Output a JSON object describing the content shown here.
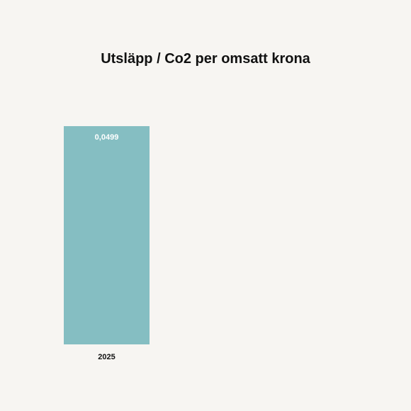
{
  "chart_data": {
    "type": "bar",
    "title": "Utsläpp / Co2 per omsatt krona",
    "categories": [
      "2025"
    ],
    "values": [
      0.0499
    ],
    "value_labels": [
      "0,0499"
    ],
    "ylim": [
      0,
      0.0499
    ],
    "xlabel": "",
    "ylabel": "",
    "grid": false,
    "legend": "none",
    "bar_color": "#85bec2",
    "value_label_color": "#ffffff",
    "background_color": "#f7f5f2"
  }
}
